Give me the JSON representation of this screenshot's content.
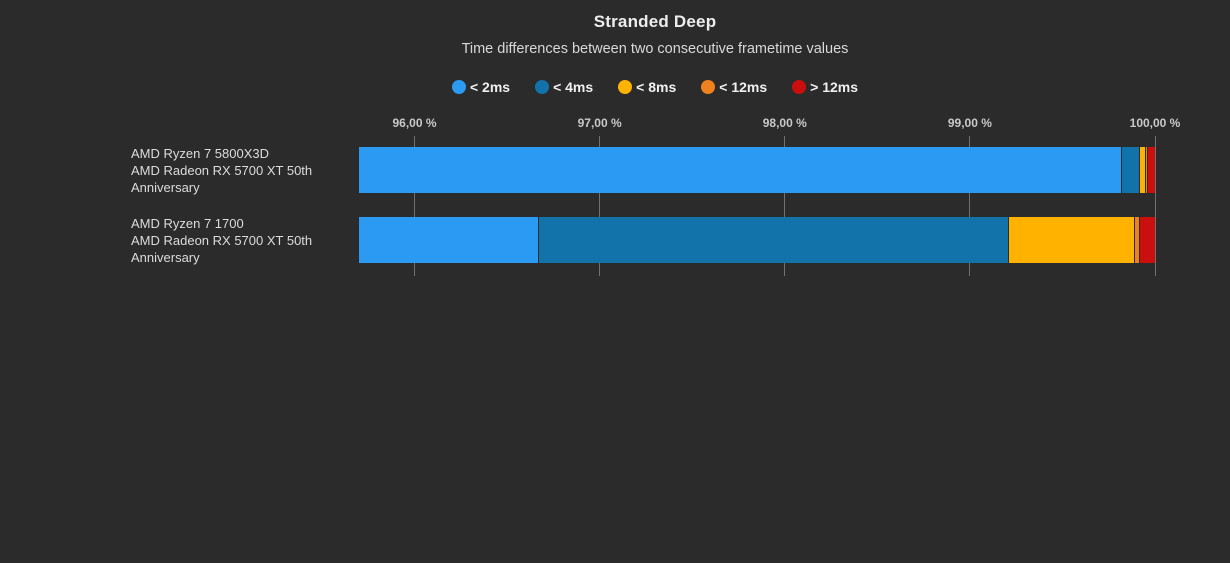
{
  "chart_data": {
    "type": "bar",
    "orientation": "horizontal-stacked",
    "title": "Stranded Deep",
    "subtitle": "Time differences between two consecutive frametime values",
    "legend_position": "top-center",
    "legend": [
      {
        "label": "< 2ms",
        "color": "#2B9AF2"
      },
      {
        "label": "< 4ms",
        "color": "#1173A9"
      },
      {
        "label": "< 8ms",
        "color": "#FFB300"
      },
      {
        "label": "< 12ms",
        "color": "#F0811F"
      },
      {
        "label": "> 12ms",
        "color": "#CB0E0E"
      }
    ],
    "x_axis": {
      "min": 95.7,
      "max": 100,
      "unit": "%",
      "grid": true,
      "ticks": [
        {
          "value": 96,
          "label": "96,00 %"
        },
        {
          "value": 97,
          "label": "97,00 %"
        },
        {
          "value": 98,
          "label": "98,00 %"
        },
        {
          "value": 99,
          "label": "99,00 %"
        },
        {
          "value": 100,
          "label": "100,00 %"
        }
      ]
    },
    "bars": [
      {
        "label_lines": [
          "AMD Ryzen 7 5800X3D",
          "AMD Radeon RX 5700 XT 50th Anniversary"
        ],
        "values": [
          99.82,
          0.1,
          0.03,
          0.01,
          0.04
        ]
      },
      {
        "label_lines": [
          "AMD Ryzen 7 1700",
          "AMD Radeon RX 5700 XT 50th Anniversary"
        ],
        "values": [
          96.67,
          2.54,
          0.68,
          0.03,
          0.08
        ]
      }
    ]
  },
  "theme": {
    "background": "#2B2B2B",
    "title_color": "#EDEDED",
    "subtitle_color": "#D8D8D8",
    "axis_label_color": "#C9C9C9",
    "row_label_color": "#DCDCDC",
    "gridline_color": "#707070"
  }
}
